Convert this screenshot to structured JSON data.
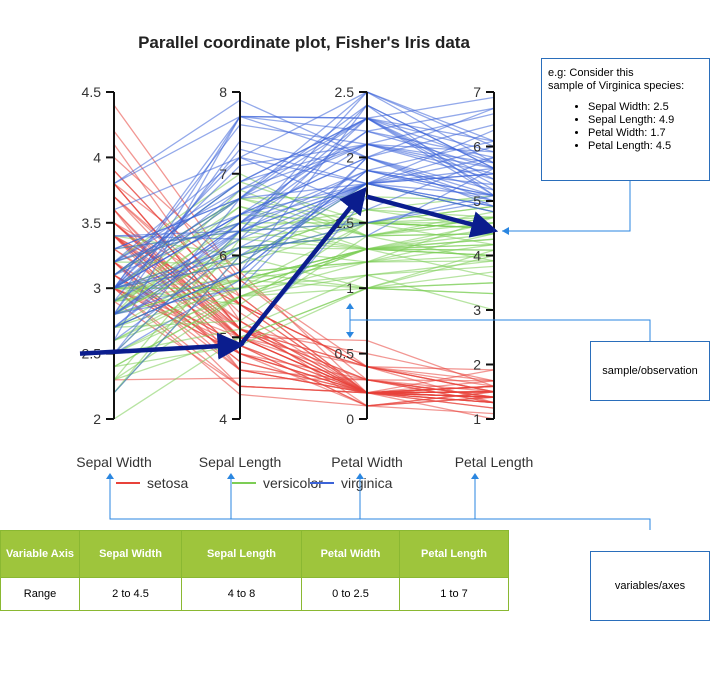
{
  "chart_data": {
    "type": "parallel-coordinates",
    "title": "Parallel coordinate plot, Fisher's Iris data",
    "axes": [
      {
        "name": "Sepal Width",
        "range": [
          2,
          4.5
        ],
        "ticks": [
          "2",
          "2.5",
          "3",
          "3.5",
          "4",
          "4.5"
        ],
        "tick_values": [
          2,
          2.5,
          3,
          3.5,
          4,
          4.5
        ]
      },
      {
        "name": "Sepal Length",
        "range": [
          4,
          8
        ],
        "ticks": [
          "4",
          "5",
          "6",
          "7",
          "8"
        ],
        "tick_values": [
          4,
          5,
          6,
          7,
          8
        ]
      },
      {
        "name": "Petal Width",
        "range": [
          0,
          2.5
        ],
        "ticks": [
          "0",
          "0.5",
          "1",
          "1.5",
          "2",
          "2.5"
        ],
        "tick_values": [
          0,
          0.5,
          1,
          1.5,
          2,
          2.5
        ]
      },
      {
        "name": "Petal Length",
        "range": [
          1,
          7
        ],
        "ticks": [
          "1",
          "2",
          "3",
          "4",
          "5",
          "6",
          "7"
        ],
        "tick_values": [
          1,
          2,
          3,
          4,
          5,
          6,
          7
        ]
      }
    ],
    "series": [
      {
        "name": "setosa",
        "color": "#e8423a",
        "values": [
          [
            3.5,
            5.1,
            0.2,
            1.4
          ],
          [
            3.0,
            4.9,
            0.2,
            1.4
          ],
          [
            3.2,
            4.7,
            0.2,
            1.3
          ],
          [
            3.1,
            4.6,
            0.2,
            1.5
          ],
          [
            3.6,
            5.0,
            0.2,
            1.4
          ],
          [
            3.9,
            5.4,
            0.4,
            1.7
          ],
          [
            3.4,
            4.6,
            0.3,
            1.4
          ],
          [
            3.4,
            5.0,
            0.2,
            1.5
          ],
          [
            2.9,
            4.4,
            0.2,
            1.4
          ],
          [
            3.1,
            4.9,
            0.1,
            1.5
          ],
          [
            3.7,
            5.4,
            0.2,
            1.5
          ],
          [
            3.4,
            4.8,
            0.2,
            1.6
          ],
          [
            3.0,
            4.8,
            0.1,
            1.4
          ],
          [
            3.0,
            4.3,
            0.1,
            1.1
          ],
          [
            4.0,
            5.8,
            0.2,
            1.2
          ],
          [
            4.4,
            5.7,
            0.4,
            1.5
          ],
          [
            3.9,
            5.4,
            0.4,
            1.3
          ],
          [
            3.5,
            5.1,
            0.3,
            1.4
          ],
          [
            3.8,
            5.7,
            0.3,
            1.7
          ],
          [
            3.8,
            5.1,
            0.3,
            1.5
          ],
          [
            3.4,
            5.4,
            0.2,
            1.7
          ],
          [
            3.7,
            5.1,
            0.4,
            1.5
          ],
          [
            3.6,
            4.6,
            0.2,
            1.0
          ],
          [
            3.3,
            5.1,
            0.5,
            1.7
          ],
          [
            3.4,
            4.8,
            0.2,
            1.9
          ],
          [
            3.0,
            5.0,
            0.2,
            1.6
          ],
          [
            3.4,
            5.0,
            0.4,
            1.6
          ],
          [
            3.5,
            5.2,
            0.2,
            1.5
          ],
          [
            3.4,
            5.2,
            0.2,
            1.4
          ],
          [
            3.2,
            4.7,
            0.2,
            1.6
          ],
          [
            3.1,
            4.8,
            0.2,
            1.6
          ],
          [
            3.4,
            5.4,
            0.4,
            1.5
          ],
          [
            4.1,
            5.2,
            0.1,
            1.5
          ],
          [
            4.2,
            5.5,
            0.2,
            1.4
          ],
          [
            3.1,
            4.9,
            0.2,
            1.5
          ],
          [
            3.2,
            5.0,
            0.2,
            1.2
          ],
          [
            3.5,
            5.5,
            0.2,
            1.3
          ],
          [
            3.6,
            4.9,
            0.1,
            1.4
          ],
          [
            3.0,
            4.4,
            0.2,
            1.3
          ],
          [
            3.4,
            5.1,
            0.2,
            1.5
          ],
          [
            3.5,
            5.0,
            0.3,
            1.3
          ],
          [
            2.3,
            4.5,
            0.3,
            1.3
          ],
          [
            3.2,
            4.4,
            0.2,
            1.3
          ],
          [
            3.5,
            5.0,
            0.6,
            1.6
          ],
          [
            3.8,
            5.1,
            0.4,
            1.9
          ],
          [
            3.0,
            4.8,
            0.3,
            1.4
          ],
          [
            3.8,
            5.1,
            0.2,
            1.6
          ],
          [
            3.2,
            4.6,
            0.2,
            1.4
          ],
          [
            3.7,
            5.3,
            0.2,
            1.5
          ],
          [
            3.3,
            5.0,
            0.2,
            1.4
          ]
        ]
      },
      {
        "name": "versicolor",
        "color": "#7ccd55",
        "values": [
          [
            3.2,
            7.0,
            1.4,
            4.7
          ],
          [
            3.2,
            6.4,
            1.5,
            4.5
          ],
          [
            3.1,
            6.9,
            1.5,
            4.9
          ],
          [
            2.3,
            5.5,
            1.3,
            4.0
          ],
          [
            2.8,
            6.5,
            1.5,
            4.6
          ],
          [
            2.8,
            5.7,
            1.3,
            4.5
          ],
          [
            3.3,
            6.3,
            1.6,
            4.7
          ],
          [
            2.4,
            4.9,
            1.0,
            3.3
          ],
          [
            2.9,
            6.6,
            1.3,
            4.6
          ],
          [
            2.7,
            5.2,
            1.4,
            3.9
          ],
          [
            2.0,
            5.0,
            1.0,
            3.5
          ],
          [
            3.0,
            5.9,
            1.5,
            4.2
          ],
          [
            2.2,
            6.0,
            1.0,
            4.0
          ],
          [
            2.9,
            6.1,
            1.4,
            4.7
          ],
          [
            2.9,
            5.6,
            1.3,
            3.6
          ],
          [
            3.1,
            6.7,
            1.4,
            4.4
          ],
          [
            3.0,
            5.6,
            1.5,
            4.5
          ],
          [
            2.7,
            5.8,
            1.0,
            4.1
          ],
          [
            2.2,
            6.2,
            1.5,
            4.5
          ],
          [
            2.5,
            5.6,
            1.1,
            3.9
          ],
          [
            3.2,
            5.9,
            1.8,
            4.8
          ],
          [
            2.8,
            6.1,
            1.3,
            4.0
          ],
          [
            2.5,
            6.3,
            1.5,
            4.9
          ],
          [
            2.8,
            6.1,
            1.2,
            4.7
          ],
          [
            2.9,
            6.4,
            1.3,
            4.3
          ],
          [
            3.0,
            6.6,
            1.4,
            4.4
          ],
          [
            2.8,
            6.8,
            1.4,
            4.8
          ],
          [
            3.0,
            6.7,
            1.7,
            5.0
          ],
          [
            2.9,
            6.0,
            1.5,
            4.5
          ],
          [
            2.6,
            5.7,
            1.0,
            3.5
          ],
          [
            2.4,
            5.5,
            1.1,
            3.8
          ],
          [
            2.4,
            5.5,
            1.0,
            3.7
          ],
          [
            2.7,
            5.8,
            1.2,
            3.9
          ],
          [
            2.7,
            6.0,
            1.6,
            5.1
          ],
          [
            3.0,
            5.4,
            1.5,
            4.5
          ],
          [
            3.4,
            6.0,
            1.6,
            4.5
          ],
          [
            3.1,
            6.7,
            1.5,
            4.7
          ],
          [
            2.3,
            6.3,
            1.3,
            4.4
          ],
          [
            3.0,
            5.6,
            1.3,
            4.1
          ],
          [
            2.5,
            5.5,
            1.3,
            4.0
          ],
          [
            2.6,
            5.5,
            1.2,
            4.4
          ],
          [
            3.0,
            6.1,
            1.4,
            4.6
          ],
          [
            2.6,
            5.8,
            1.2,
            4.0
          ],
          [
            2.3,
            5.0,
            1.0,
            3.3
          ],
          [
            2.7,
            5.6,
            1.3,
            4.2
          ],
          [
            3.0,
            5.7,
            1.2,
            4.2
          ],
          [
            2.9,
            5.7,
            1.3,
            4.2
          ],
          [
            2.9,
            6.2,
            1.3,
            4.3
          ],
          [
            2.5,
            5.1,
            1.1,
            3.0
          ],
          [
            2.8,
            5.7,
            1.3,
            4.1
          ]
        ]
      },
      {
        "name": "virginica",
        "color": "#3b63d8",
        "values": [
          [
            3.3,
            6.3,
            2.5,
            6.0
          ],
          [
            2.7,
            5.8,
            1.9,
            5.1
          ],
          [
            3.0,
            7.1,
            2.1,
            5.9
          ],
          [
            2.9,
            6.3,
            1.8,
            5.6
          ],
          [
            3.0,
            6.5,
            2.2,
            5.8
          ],
          [
            3.0,
            7.6,
            2.1,
            6.6
          ],
          [
            2.5,
            4.9,
            1.7,
            4.5
          ],
          [
            2.9,
            7.3,
            1.8,
            6.3
          ],
          [
            2.5,
            6.7,
            1.8,
            5.8
          ],
          [
            3.6,
            7.2,
            2.5,
            6.1
          ],
          [
            3.2,
            6.5,
            2.0,
            5.1
          ],
          [
            2.7,
            6.4,
            1.9,
            5.3
          ],
          [
            3.0,
            6.8,
            2.1,
            5.5
          ],
          [
            2.5,
            5.7,
            2.0,
            5.0
          ],
          [
            2.8,
            5.8,
            2.4,
            5.1
          ],
          [
            3.2,
            6.4,
            2.3,
            5.3
          ],
          [
            3.0,
            6.5,
            1.8,
            5.5
          ],
          [
            3.8,
            7.7,
            2.2,
            6.7
          ],
          [
            2.6,
            7.7,
            2.3,
            6.9
          ],
          [
            2.2,
            6.0,
            1.5,
            5.0
          ],
          [
            3.2,
            6.9,
            2.3,
            5.7
          ],
          [
            2.8,
            5.6,
            2.0,
            4.9
          ],
          [
            2.8,
            7.7,
            2.0,
            6.7
          ],
          [
            2.7,
            6.3,
            1.8,
            4.9
          ],
          [
            3.3,
            6.7,
            2.1,
            5.7
          ],
          [
            3.2,
            7.2,
            1.8,
            6.0
          ],
          [
            2.8,
            6.2,
            1.8,
            4.8
          ],
          [
            3.0,
            6.1,
            1.8,
            4.9
          ],
          [
            2.8,
            6.4,
            2.1,
            5.6
          ],
          [
            3.0,
            7.2,
            1.6,
            5.8
          ],
          [
            2.8,
            7.4,
            1.9,
            6.1
          ],
          [
            3.8,
            7.9,
            2.0,
            6.4
          ],
          [
            2.8,
            6.4,
            2.2,
            5.6
          ],
          [
            2.8,
            6.3,
            1.5,
            5.1
          ],
          [
            2.6,
            6.1,
            1.4,
            5.6
          ],
          [
            3.0,
            7.7,
            2.3,
            6.1
          ],
          [
            3.4,
            6.3,
            2.4,
            5.6
          ],
          [
            3.1,
            6.4,
            1.8,
            5.5
          ],
          [
            3.0,
            6.0,
            1.8,
            4.8
          ],
          [
            3.1,
            6.9,
            2.1,
            5.4
          ],
          [
            3.1,
            6.7,
            2.4,
            5.6
          ],
          [
            3.1,
            6.9,
            2.3,
            5.1
          ],
          [
            2.7,
            5.8,
            1.9,
            5.1
          ],
          [
            3.2,
            6.8,
            2.3,
            5.9
          ],
          [
            3.3,
            6.7,
            2.5,
            5.7
          ],
          [
            3.0,
            6.7,
            2.3,
            5.2
          ],
          [
            2.5,
            6.3,
            1.9,
            5.0
          ],
          [
            3.0,
            6.5,
            2.0,
            5.2
          ],
          [
            3.4,
            6.2,
            2.3,
            5.4
          ],
          [
            3.0,
            5.9,
            1.8,
            5.1
          ]
        ]
      }
    ],
    "highlight": {
      "species": "virginica",
      "values": [
        2.5,
        4.9,
        1.7,
        4.5
      ],
      "color": "#0b1d8e"
    }
  },
  "legend": [
    {
      "name": "setosa",
      "color": "#e8423a"
    },
    {
      "name": "versicolor",
      "color": "#7ccd55"
    },
    {
      "name": "virginica",
      "color": "#3b63d8"
    }
  ],
  "example_note": {
    "heading_1": "e.g: Consider this",
    "heading_2": "sample of Virginica species:",
    "items": [
      "Sepal Width: 2.5",
      "Sepal Length: 4.9",
      "Petal Width: 1.7",
      "Petal Length: 4.5"
    ]
  },
  "sample_label": "sample/observation",
  "axes_label": "variables/axes",
  "range_table": {
    "headers": [
      "Variable Axis",
      "Sepal Width",
      "Sepal Length",
      "Petal Width",
      "Petal Length"
    ],
    "row": [
      "Range",
      "2 to 4.5",
      "4 to 8",
      "0 to 2.5",
      "1 to 7"
    ]
  },
  "colors": {
    "callout_line": "#2a86e0",
    "table_header": "#9ec53c",
    "table_border": "#8ab832"
  }
}
